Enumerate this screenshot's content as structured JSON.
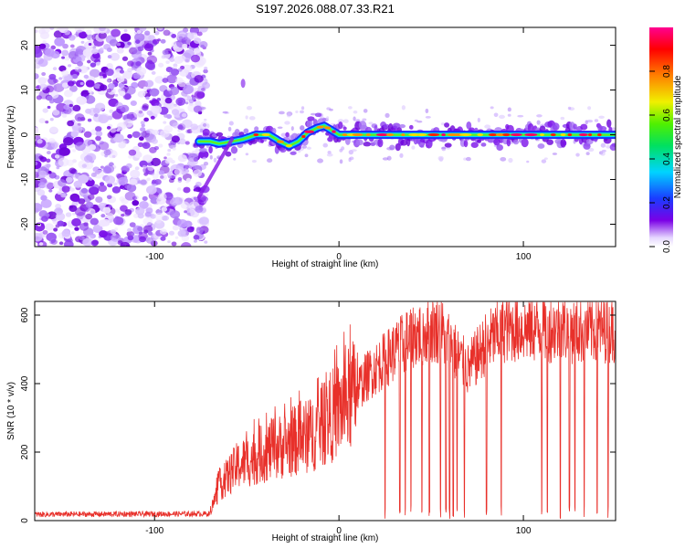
{
  "figure_title": "S197.2026.088.07.33.R21",
  "chart_data": [
    {
      "type": "heatmap",
      "xlabel": "Height of straight line (km)",
      "ylabel": "Frequency (Hz)",
      "xlim": [
        -165,
        150
      ],
      "ylim": [
        -25,
        24
      ],
      "xticks": [
        -100,
        0,
        100
      ],
      "xtick_labels": [
        "-100",
        "0",
        "100"
      ],
      "yticks": [
        -20,
        -10,
        0,
        10,
        20
      ],
      "ytick_labels": [
        "-20",
        "-10",
        "0",
        "10",
        "20"
      ],
      "noise_region_x": [
        -165,
        -75
      ],
      "ridge": {
        "x": [
          -76,
          -70,
          -65,
          -58,
          -52,
          -45,
          -38,
          -32,
          -27,
          -22,
          -17,
          -12,
          -8,
          -4,
          0,
          5,
          10,
          20,
          30,
          40,
          50,
          60,
          70,
          80,
          90,
          100,
          110,
          120,
          130,
          145
        ],
        "y": [
          -1.5,
          -1.5,
          -2,
          -1.5,
          -1,
          0,
          0,
          -1.5,
          -2.5,
          -1.5,
          0.5,
          1.5,
          2,
          1,
          0,
          0,
          0,
          0,
          0,
          0,
          0,
          0,
          0,
          0,
          0,
          0,
          0,
          0,
          0,
          0
        ]
      },
      "colorbar": {
        "label": "Normalized spectral amplitude",
        "range": [
          0,
          1
        ],
        "ticks": [
          0.0,
          0.2,
          0.4,
          0.6,
          0.8
        ],
        "tick_labels": [
          "0.0",
          "0.2",
          "0.4",
          "0.6",
          "0.8"
        ]
      }
    },
    {
      "type": "line",
      "xlabel": "Height of straight line (km)",
      "ylabel": "SNR (10 * v/v)",
      "xlim": [
        -165,
        150
      ],
      "ylim": [
        0,
        640
      ],
      "xticks": [
        -100,
        0,
        100
      ],
      "xtick_labels": [
        "-100",
        "0",
        "100"
      ],
      "yticks": [
        0,
        200,
        400,
        600
      ],
      "ytick_labels": [
        "0",
        "200",
        "400",
        "600"
      ],
      "color": "#e8302a",
      "envelope": {
        "x": [
          -165,
          -70,
          -65,
          -55,
          -40,
          -25,
          -15,
          -5,
          5,
          15,
          25,
          40,
          55,
          62,
          70,
          80,
          90,
          100,
          110,
          120,
          130,
          148
        ],
        "y": [
          18,
          20,
          100,
          160,
          200,
          230,
          250,
          300,
          350,
          420,
          470,
          540,
          560,
          500,
          440,
          520,
          560,
          560,
          560,
          560,
          555,
          560
        ]
      },
      "dropouts": [
        25,
        33,
        36,
        39,
        45,
        49,
        55,
        58,
        60,
        62,
        64,
        68,
        80,
        88,
        110,
        113,
        120,
        125,
        128,
        133,
        140,
        146
      ]
    }
  ]
}
